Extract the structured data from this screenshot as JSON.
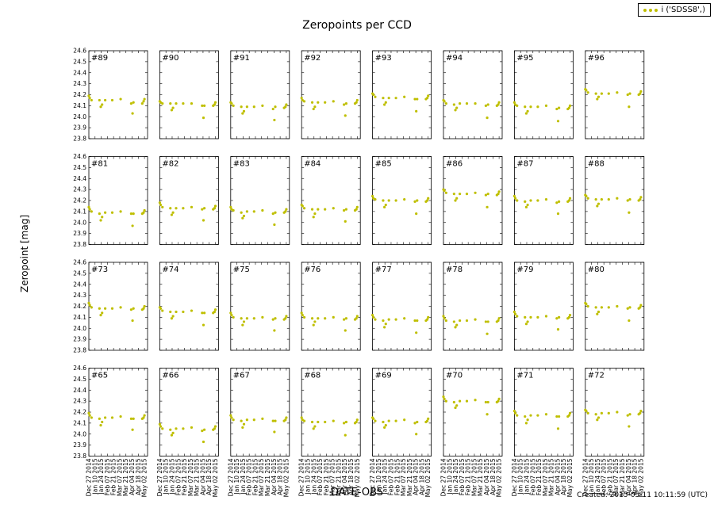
{
  "chart_data": {
    "type": "scatter",
    "title": "Zeropoints per CCD",
    "xlabel": "DATE-OBS",
    "ylabel": "Zeropoint [mag]",
    "ylim": [
      23.8,
      24.6
    ],
    "yticks": [
      "23.8",
      "23.9",
      "24.0",
      "24.1",
      "24.2",
      "24.3",
      "24.4",
      "24.5",
      "24.6"
    ],
    "xlim": [
      "2014-12-27",
      "2015-05-09"
    ],
    "xticks": [
      "Dec 27 2014",
      "Jan 10 2015",
      "Jan 24 2015",
      "Feb 07 2015",
      "Feb 21 2015",
      "Mar 07 2015",
      "Mar 21 2015",
      "Apr 04 2015",
      "Apr 18 2015",
      "May 02 2015"
    ],
    "xtick_dates": [
      "2014-12-27",
      "2015-01-10",
      "2015-01-24",
      "2015-02-07",
      "2015-02-21",
      "2015-03-07",
      "2015-03-21",
      "2015-04-04",
      "2015-04-18",
      "2015-05-02"
    ],
    "legend": {
      "label": "i ('SDSS8',)",
      "placement": "top-right"
    },
    "marker_color": "#bfbf00",
    "grid": false,
    "obs_dates": [
      "2014-12-27",
      "2014-12-29",
      "2015-01-02",
      "2015-01-20",
      "2015-01-23",
      "2015-01-26",
      "2015-02-02",
      "2015-02-18",
      "2015-03-09",
      "2015-04-02",
      "2015-04-05",
      "2015-04-07",
      "2015-04-27",
      "2015-04-30",
      "2015-05-02"
    ],
    "panels": [
      {
        "label": "#89",
        "zp": [
          24.19,
          24.17,
          24.15,
          24.15,
          24.09,
          24.11,
          24.15,
          24.15,
          24.16,
          24.12,
          24.03,
          24.13,
          24.12,
          24.14,
          24.16
        ]
      },
      {
        "label": "#90",
        "zp": [
          24.14,
          24.13,
          24.12,
          24.12,
          24.06,
          24.08,
          24.12,
          24.12,
          24.12,
          24.1,
          23.99,
          24.1,
          24.1,
          24.11,
          24.13
        ]
      },
      {
        "label": "#91",
        "zp": [
          24.13,
          24.12,
          24.1,
          24.09,
          24.03,
          24.05,
          24.09,
          24.09,
          24.1,
          24.07,
          23.97,
          24.09,
          24.08,
          24.09,
          24.11
        ]
      },
      {
        "label": "#92",
        "zp": [
          24.17,
          24.15,
          24.14,
          24.13,
          24.07,
          24.09,
          24.13,
          24.13,
          24.14,
          24.11,
          24.01,
          24.12,
          24.12,
          24.13,
          24.15
        ]
      },
      {
        "label": "#93",
        "zp": [
          24.21,
          24.2,
          24.18,
          24.17,
          24.11,
          24.13,
          24.17,
          24.17,
          24.18,
          24.16,
          24.05,
          24.16,
          24.16,
          24.17,
          24.19
        ]
      },
      {
        "label": "#94",
        "zp": [
          24.15,
          24.14,
          24.12,
          24.11,
          24.06,
          24.08,
          24.12,
          24.12,
          24.12,
          24.1,
          23.99,
          24.11,
          24.1,
          24.11,
          24.13
        ]
      },
      {
        "label": "#95",
        "zp": [
          24.13,
          24.11,
          24.1,
          24.09,
          24.03,
          24.05,
          24.09,
          24.09,
          24.1,
          24.07,
          23.96,
          24.08,
          24.07,
          24.08,
          24.1
        ]
      },
      {
        "label": "#96",
        "zp": [
          24.25,
          24.24,
          24.22,
          24.21,
          24.16,
          24.18,
          24.21,
          24.21,
          24.22,
          24.2,
          24.09,
          24.21,
          24.2,
          24.21,
          24.23
        ]
      },
      {
        "label": "#81",
        "zp": [
          24.14,
          24.12,
          24.1,
          24.08,
          24.02,
          24.05,
          24.09,
          24.09,
          24.1,
          24.08,
          23.97,
          24.08,
          24.08,
          24.09,
          24.11
        ]
      },
      {
        "label": "#82",
        "zp": [
          24.18,
          24.16,
          24.14,
          24.13,
          24.07,
          24.09,
          24.13,
          24.13,
          24.14,
          24.12,
          24.02,
          24.13,
          24.12,
          24.13,
          24.15
        ]
      },
      {
        "label": "#83",
        "zp": [
          24.14,
          24.12,
          24.11,
          24.09,
          24.04,
          24.06,
          24.1,
          24.1,
          24.11,
          24.08,
          23.98,
          24.09,
          24.09,
          24.1,
          24.12
        ]
      },
      {
        "label": "#84",
        "zp": [
          24.16,
          24.15,
          24.13,
          24.12,
          24.05,
          24.08,
          24.12,
          24.12,
          24.13,
          24.11,
          24.01,
          24.12,
          24.11,
          24.12,
          24.14
        ]
      },
      {
        "label": "#85",
        "zp": [
          24.24,
          24.22,
          24.21,
          24.2,
          24.14,
          24.16,
          24.2,
          24.2,
          24.21,
          24.19,
          24.08,
          24.2,
          24.19,
          24.2,
          24.22
        ]
      },
      {
        "label": "#86",
        "zp": [
          24.3,
          24.29,
          24.27,
          24.26,
          24.2,
          24.22,
          24.26,
          24.26,
          24.27,
          24.25,
          24.14,
          24.26,
          24.25,
          24.26,
          24.28
        ]
      },
      {
        "label": "#87",
        "zp": [
          24.24,
          24.22,
          24.2,
          24.19,
          24.14,
          24.16,
          24.2,
          24.2,
          24.21,
          24.18,
          24.08,
          24.19,
          24.19,
          24.2,
          24.22
        ]
      },
      {
        "label": "#88",
        "zp": [
          24.25,
          24.24,
          24.22,
          24.21,
          24.15,
          24.17,
          24.21,
          24.21,
          24.22,
          24.2,
          24.09,
          24.21,
          24.2,
          24.21,
          24.23
        ]
      },
      {
        "label": "#73",
        "zp": [
          24.23,
          24.21,
          24.19,
          24.18,
          24.12,
          24.14,
          24.18,
          24.18,
          24.19,
          24.17,
          24.07,
          24.18,
          24.17,
          24.18,
          24.2
        ]
      },
      {
        "label": "#74",
        "zp": [
          24.19,
          24.18,
          24.16,
          24.15,
          24.09,
          24.11,
          24.15,
          24.15,
          24.16,
          24.14,
          24.03,
          24.14,
          24.14,
          24.15,
          24.17
        ]
      },
      {
        "label": "#75",
        "zp": [
          24.14,
          24.12,
          24.1,
          24.09,
          24.03,
          24.06,
          24.09,
          24.09,
          24.1,
          24.08,
          23.98,
          24.09,
          24.08,
          24.09,
          24.11
        ]
      },
      {
        "label": "#76",
        "zp": [
          24.14,
          24.12,
          24.1,
          24.09,
          24.03,
          24.06,
          24.09,
          24.09,
          24.1,
          24.08,
          23.98,
          24.09,
          24.08,
          24.09,
          24.11
        ]
      },
      {
        "label": "#77",
        "zp": [
          24.12,
          24.1,
          24.08,
          24.07,
          24.01,
          24.04,
          24.08,
          24.08,
          24.09,
          24.07,
          23.96,
          24.07,
          24.07,
          24.08,
          24.1
        ]
      },
      {
        "label": "#78",
        "zp": [
          24.11,
          24.09,
          24.07,
          24.06,
          24.01,
          24.03,
          24.07,
          24.07,
          24.08,
          24.06,
          23.95,
          24.06,
          24.06,
          24.07,
          24.09
        ]
      },
      {
        "label": "#79",
        "zp": [
          24.15,
          24.13,
          24.11,
          24.1,
          24.04,
          24.06,
          24.1,
          24.1,
          24.11,
          24.09,
          23.99,
          24.1,
          24.09,
          24.1,
          24.12
        ]
      },
      {
        "label": "#80",
        "zp": [
          24.23,
          24.22,
          24.2,
          24.19,
          24.13,
          24.15,
          24.19,
          24.19,
          24.2,
          24.18,
          24.07,
          24.19,
          24.18,
          24.19,
          24.21
        ]
      },
      {
        "label": "#65",
        "zp": [
          24.19,
          24.17,
          24.15,
          24.14,
          24.08,
          24.11,
          24.15,
          24.15,
          24.16,
          24.14,
          24.04,
          24.14,
          24.14,
          24.15,
          24.17
        ]
      },
      {
        "label": "#66",
        "zp": [
          24.09,
          24.07,
          24.05,
          24.04,
          23.99,
          24.01,
          24.05,
          24.05,
          24.06,
          24.03,
          23.93,
          24.04,
          24.04,
          24.05,
          24.07
        ]
      },
      {
        "label": "#67",
        "zp": [
          24.17,
          24.15,
          24.13,
          24.12,
          24.06,
          24.09,
          24.13,
          24.13,
          24.14,
          24.12,
          24.02,
          24.12,
          24.12,
          24.13,
          24.15
        ]
      },
      {
        "label": "#68",
        "zp": [
          24.15,
          24.13,
          24.12,
          24.11,
          24.05,
          24.07,
          24.11,
          24.11,
          24.12,
          24.1,
          23.99,
          24.11,
          24.1,
          24.11,
          24.13
        ]
      },
      {
        "label": "#69",
        "zp": [
          24.15,
          24.14,
          24.12,
          24.11,
          24.06,
          24.08,
          24.12,
          24.12,
          24.13,
          24.1,
          24.0,
          24.11,
          24.11,
          24.12,
          24.14
        ]
      },
      {
        "label": "#70",
        "zp": [
          24.34,
          24.32,
          24.3,
          24.29,
          24.24,
          24.26,
          24.3,
          24.3,
          24.31,
          24.29,
          24.18,
          24.29,
          24.29,
          24.3,
          24.32
        ]
      },
      {
        "label": "#71",
        "zp": [
          24.21,
          24.19,
          24.17,
          24.16,
          24.1,
          24.13,
          24.17,
          24.17,
          24.18,
          24.16,
          24.05,
          24.16,
          24.16,
          24.17,
          24.19
        ]
      },
      {
        "label": "#72",
        "zp": [
          24.22,
          24.21,
          24.19,
          24.18,
          24.13,
          24.15,
          24.19,
          24.19,
          24.2,
          24.17,
          24.07,
          24.18,
          24.18,
          24.19,
          24.21
        ]
      }
    ]
  },
  "footer": {
    "created": "Created: 2015-05-11 10:11:59 (UTC)"
  }
}
